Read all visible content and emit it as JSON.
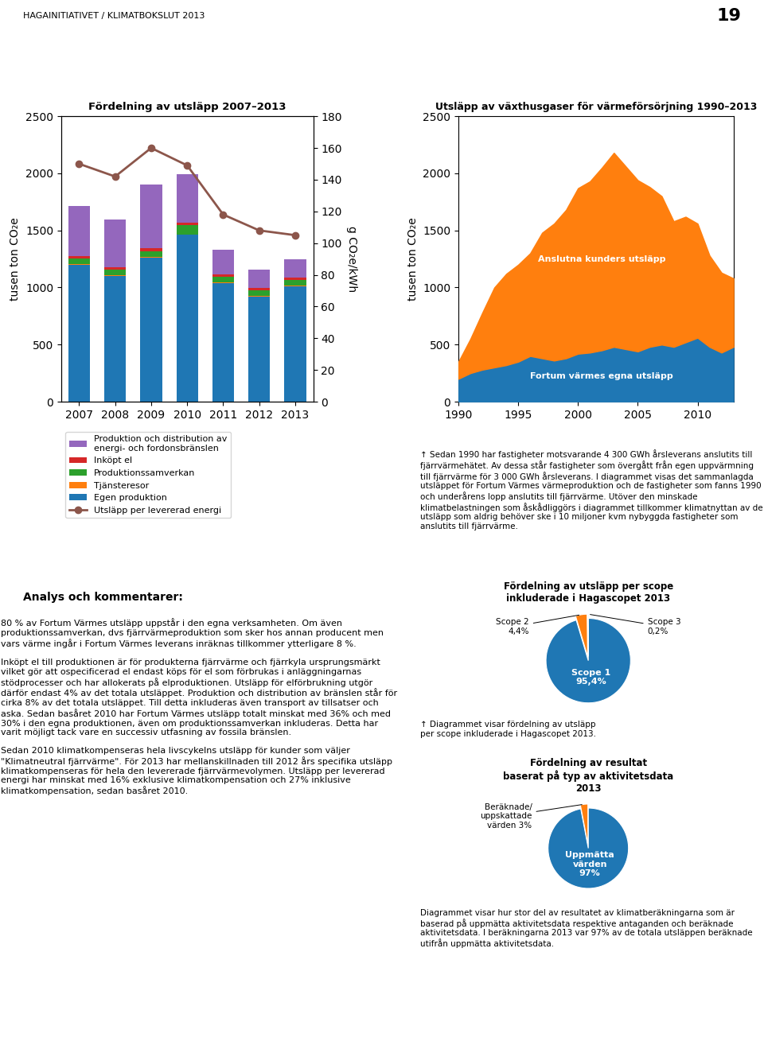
{
  "annotations": [
    "HAGAINITIATIVET / KLIMATBOKSLUT 2013",
    "19",
    "Analys och kommentarer:",
    "80 % av Fortum Värmes utsläpp uppstår i den egna verksamheten. Om även produktionssamverkan, dvs fjärrvärmeproduktion som sker hos annan producent men vars värme ingår i Fortum Värmes leverans inräknas tillkommer ytterligare 8 %.\n\nInköpt el till produktionen är för produkterna fjärrvärme och fjärrkyla ursprungsmärkt vilket gör att ospecificerad el endast köps för el som förbrukas i anläggningarnas stödprocesser och har allokerats på elproduktionen. Utsläpp för elförbrukning utgör därför endast 4% av det totala utsläppet. Produktion och distribution av bränslen står för cirka 8% av det totala utsläppet. Till detta inkluderas även transport av tillsatser och aska. Sedan basåret 2010 har Fortum Värmes utsläpp totalt minskat med 36% och med 30% i den egna produktionen, även om produktionssamverkan inkluderas. Detta har varit möjligt tack vare en successiv utfasning av fossila bränslen.\n\nSedan 2010 klimatkompenseras hela livscykelns utsläpp för kunder som väljer \"Klimatneutral fjärrvärme\". För 2013 har mellanskillnaden till 2012 års specifika utsläpp klimatkompenseras för hela den levererade fjärrvärmevolymen. Utsläpp per levererad energi har minskat med 16% exklusive klimatkompensation och 27% inklusive klimatkompensation, sedan basåret 2010."
  ],
  "chart_data": [
    {
      "type": "bar",
      "title": "Fördelning av utsläpp 2007–2013",
      "categories": [
        "2007",
        "2008",
        "2009",
        "2010",
        "2011",
        "2012",
        "2013"
      ],
      "stacked": true,
      "grid": false,
      "legend": "upper left",
      "ylabel": "tusen ton CO₂e",
      "y2label": "g CO₂e/kWh",
      "ylim": [
        0,
        2500
      ],
      "yticks": [
        0,
        500,
        1000,
        1500,
        2000,
        2500
      ],
      "y2lim": [
        0,
        180
      ],
      "y2ticks": [
        0,
        20,
        40,
        60,
        80,
        100,
        120,
        140,
        160,
        180
      ],
      "series": [
        {
          "name": "Egen produktion",
          "values": [
            1200,
            1100,
            1260,
            1460,
            1040,
            920,
            1010
          ]
        },
        {
          "name": "Tjänsteresor",
          "values": [
            5,
            5,
            5,
            5,
            5,
            5,
            5
          ]
        },
        {
          "name": "Produktionssamverkan",
          "values": [
            50,
            50,
            50,
            80,
            50,
            50,
            50
          ]
        },
        {
          "name": "Inköpt el",
          "values": [
            20,
            20,
            30,
            20,
            20,
            20,
            20
          ]
        },
        {
          "name": "Produktion och distribution av\nenergi- och fordonsbränslen",
          "values": [
            440,
            420,
            555,
            430,
            215,
            165,
            165
          ]
        },
        {
          "name": "Utsläpp per levererad energi",
          "type": "line",
          "axis": "y2",
          "marker": "o",
          "values": [
            150,
            142,
            160,
            149,
            118,
            108,
            105
          ]
        }
      ]
    },
    {
      "type": "area",
      "title": "Utsläpp av växthusgaser för värmeförsörjning 1990–2013",
      "stacked": true,
      "grid": false,
      "x": [
        1990,
        1991,
        1992,
        1993,
        1994,
        1995,
        1996,
        1997,
        1998,
        1999,
        2000,
        2001,
        2002,
        2003,
        2004,
        2005,
        2006,
        2007,
        2008,
        2009,
        2010,
        2011,
        2012,
        2013
      ],
      "xlim": [
        1990,
        2013
      ],
      "xticks": [
        1990,
        1995,
        2000,
        2005,
        2010
      ],
      "ylabel": "tusen ton CO₂e",
      "ylim": [
        0,
        2500
      ],
      "yticks": [
        0,
        500,
        1000,
        1500,
        2000,
        2500
      ],
      "series": [
        {
          "name": "Fortum värmes egna utsläpp",
          "values": [
            200,
            250,
            280,
            300,
            320,
            350,
            400,
            380,
            360,
            380,
            420,
            430,
            450,
            480,
            460,
            440,
            480,
            500,
            480,
            520,
            560,
            480,
            430,
            480
          ]
        },
        {
          "name": "Anslutna kunders utsläpp",
          "values": [
            150,
            300,
            500,
            700,
            800,
            850,
            900,
            1100,
            1200,
            1300,
            1450,
            1500,
            1600,
            1700,
            1600,
            1500,
            1400,
            1300,
            1100,
            1100,
            1000,
            800,
            700,
            600
          ]
        }
      ],
      "annotations": [
        "↑ Sedan 1990 har fastigheter motsvarande 4 300 GWh årsleverans anslutits till fjärrvärmehätet. Av dessa står fastigheter som övergått från egen uppvärmning till fjärrvärme för 3 000 GWh årsleverans. I diagrammet visas det sammanlagda utsläppet för Fortum Värmes värmeproduktion och de fastigheter som fanns 1990 och underårens lopp anslutits till fjärrvärme. Utöver den minskade klimatbelastningen som åskådliggörs i diagrammet tillkommer klimatnyttan av de utsläpp som aldrig behöver ske i 10 miljoner kvm nybyggda fastigheter som anslutits till fjärrvärme."
      ]
    },
    {
      "type": "pie",
      "title": "Fördelning av utsläpp per scope\ninkluderade i Hagascopet 2013",
      "categories": [
        "Scope 1\n95,4%",
        "Scope 2\n4,4%",
        "Scope 3\n0,2%"
      ],
      "values": [
        95.4,
        4.4,
        0.2
      ],
      "annotations": [
        "↑ Diagrammet visar fördelning av utsläpp\nper scope inkluderade i Hagascopet 2013."
      ]
    },
    {
      "type": "pie",
      "title": "Fördelning av resultat\nbaserat på typ av aktivitetsdata\n2013",
      "categories": [
        "Uppmätta\nvärden\n97%",
        "Beräknade/\nuppskattade\nvärden 3%"
      ],
      "values": [
        97,
        3
      ],
      "annotations": [
        "Diagrammet visar hur stor del av resultatet av klimatberäkningarna som är baserad på uppmätta aktivitetsdata respektive antaganden och beräknade aktivitetsdata. I beräkningarna 2013 var 97% av de totala utsläppen beräknade utifrån uppmätta aktivitetsdata."
      ]
    }
  ]
}
